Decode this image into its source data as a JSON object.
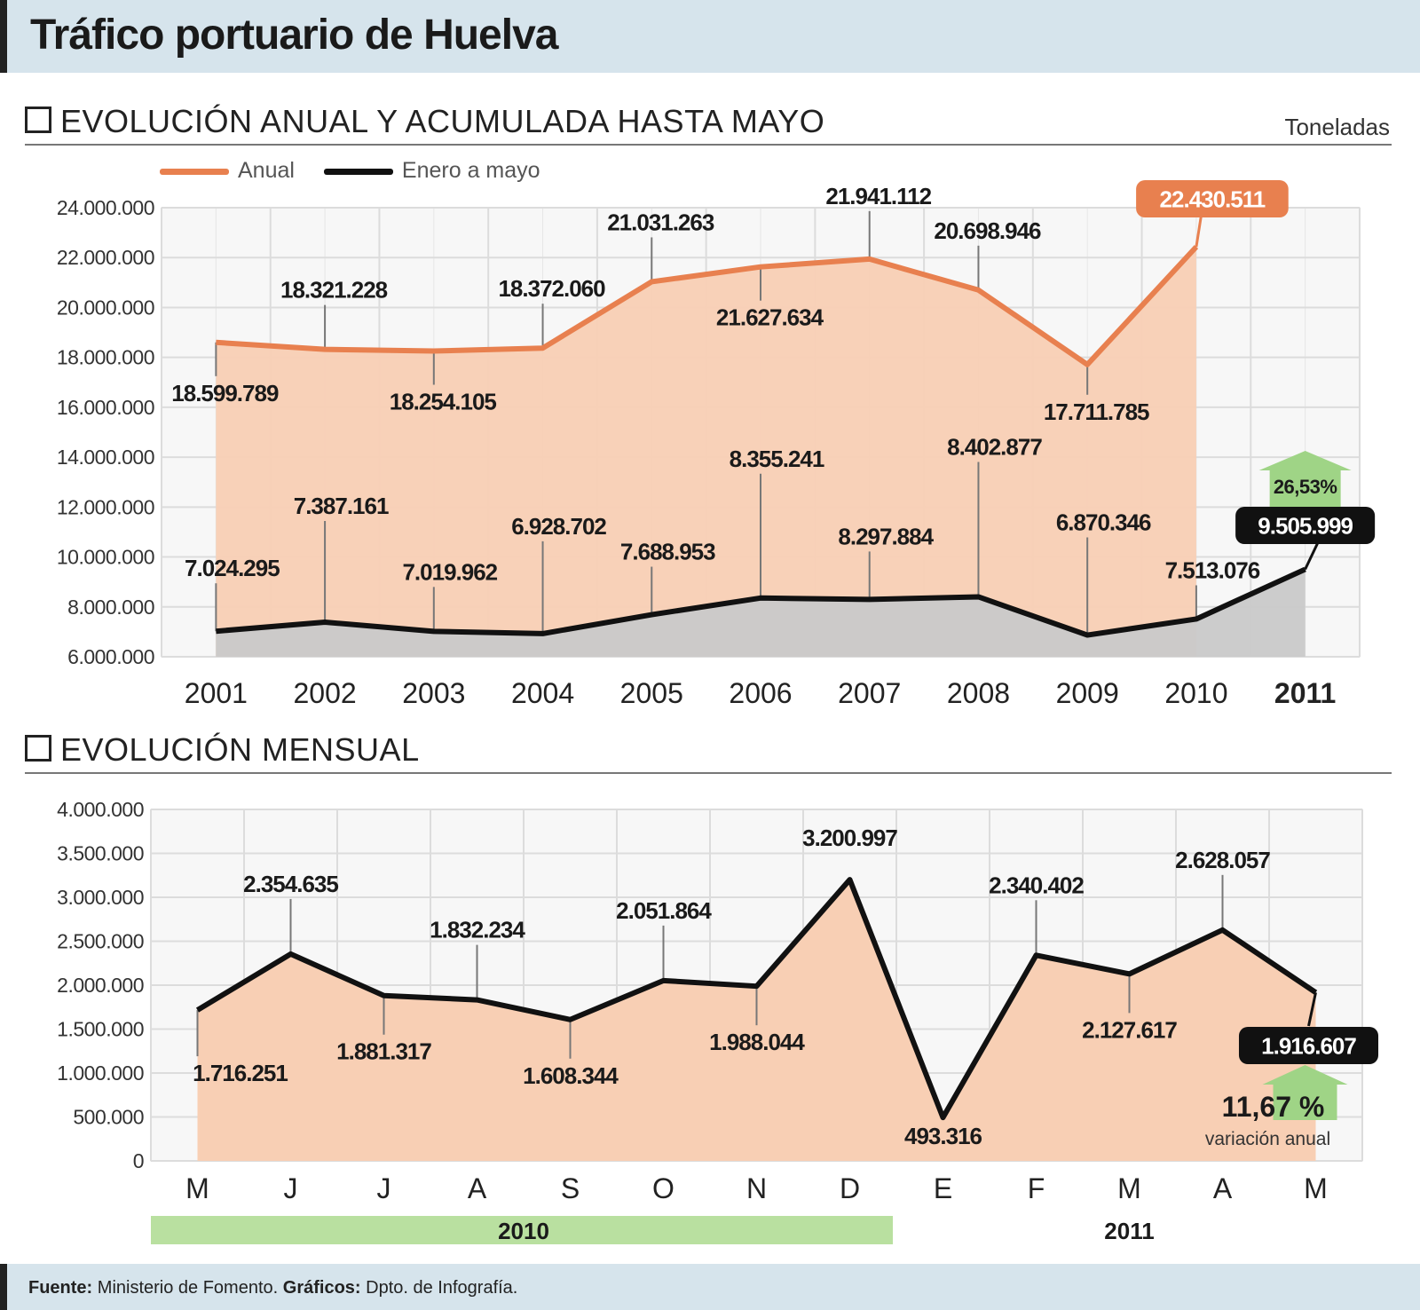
{
  "header": {
    "title": "Tráfico portuario de Huelva"
  },
  "section1": {
    "title": "EVOLUCIÓN ANUAL Y ACUMULADA HASTA MAYO",
    "units": "Toneladas"
  },
  "section2": {
    "title": "EVOLUCIÓN MENSUAL"
  },
  "legend": {
    "anual": "Anual",
    "enero_mayo": "Enero a mayo"
  },
  "colors": {
    "anual_line": "#e8804f",
    "anual_fill": "#f8cfb4",
    "ytd_line": "#111111",
    "ytd_fill": "#c9c9c9",
    "badge_orange": "#e8804f",
    "badge_black": "#111111",
    "green": "#b9e0a0",
    "green_arrow": "#9fd486"
  },
  "chart_data": [
    {
      "type": "area",
      "title": "EVOLUCIÓN ANUAL Y ACUMULADA HASTA MAYO",
      "ylabel": "Toneladas",
      "ylim": [
        6000000,
        24000000
      ],
      "y_ticks": [
        "6.000.000",
        "8.000.000",
        "10.000.000",
        "12.000.000",
        "14.000.000",
        "16.000.000",
        "18.000.000",
        "20.000.000",
        "22.000.000",
        "24.000.000"
      ],
      "categories": [
        "2001",
        "2002",
        "2003",
        "2004",
        "2005",
        "2006",
        "2007",
        "2008",
        "2009",
        "2010",
        "2011"
      ],
      "series": [
        {
          "name": "Anual",
          "values": [
            18599789,
            18321228,
            18254105,
            18372060,
            21031263,
            21627634,
            21941112,
            20698946,
            17711785,
            22430511,
            null
          ],
          "labels": [
            "18.599.789",
            "18.321.228",
            "18.254.105",
            "18.372.060",
            "21.031.263",
            "21.627.634",
            "21.941.112",
            "20.698.946",
            "17.711.785",
            "22.430.511",
            ""
          ]
        },
        {
          "name": "Enero a mayo",
          "values": [
            7024295,
            7387161,
            7019962,
            6928702,
            7688953,
            8355241,
            8297884,
            8402877,
            6870346,
            7513076,
            9505999
          ],
          "labels": [
            "7.024.295",
            "7.387.161",
            "7.019.962",
            "6.928.702",
            "7.688.953",
            "8.355.241",
            "8.297.884",
            "8.402.877",
            "6.870.346",
            "7.513.076",
            "9.505.999"
          ]
        }
      ],
      "annotation": "26,53%"
    },
    {
      "type": "area",
      "title": "EVOLUCIÓN MENSUAL",
      "ylim": [
        0,
        4000000
      ],
      "y_ticks": [
        "0",
        "500.000",
        "1.000.000",
        "1.500.000",
        "2.000.000",
        "2.500.000",
        "3.000.000",
        "3.500.000",
        "4.000.000"
      ],
      "categories": [
        "M",
        "J",
        "J",
        "A",
        "S",
        "O",
        "N",
        "D",
        "E",
        "F",
        "M",
        "A",
        "M"
      ],
      "values": [
        1716251,
        2354635,
        1881317,
        1832234,
        1608344,
        2051864,
        1988044,
        3200997,
        493316,
        2340402,
        2127617,
        2628057,
        1916607
      ],
      "labels": [
        "1.716.251",
        "2.354.635",
        "1.881.317",
        "1.832.234",
        "1.608.344",
        "2.051.864",
        "1.988.044",
        "3.200.997",
        "493.316",
        "2.340.402",
        "2.127.617",
        "2.628.057",
        "1.916.607"
      ],
      "year_groups": [
        "2010",
        "2011"
      ],
      "variation_value": "11,67 %",
      "variation_label": "variación anual"
    }
  ],
  "footer": {
    "fuente_label": "Fuente:",
    "fuente": "Ministerio de Fomento.",
    "graficos_label": "Gráficos:",
    "graficos": "Dpto. de Infografía."
  }
}
